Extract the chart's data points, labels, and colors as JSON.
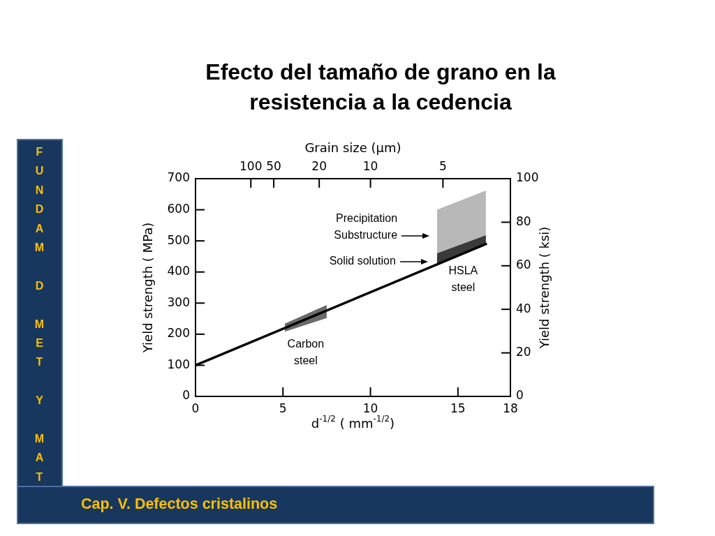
{
  "chart_data": {
    "type": "line",
    "title": "Efecto del tamaño de grano en la resistencia a la cedencia",
    "xlabel": "d$^{-1/2}$ ( mm$^{-1/2}$)",
    "ylabel": "Yield strength ( MPa)",
    "y2label": "Yield strength ( ksi)",
    "xlim": [
      0,
      18
    ],
    "xticks": [
      0,
      5,
      10,
      15,
      18
    ],
    "ylim": [
      0,
      700
    ],
    "yticks": [
      0,
      100,
      200,
      300,
      400,
      500,
      600,
      700
    ],
    "y2lim": [
      0,
      100
    ],
    "y2ticks": [
      0,
      20,
      40,
      60,
      80,
      100
    ],
    "series": [
      {
        "color": "#000000",
        "x": [
          0,
          16.6
        ],
        "values": [
          100,
          490
        ]
      },
      {
        "color": "#6a6a6a",
        "x": [
          5.1,
          7.5
        ],
        "values": [
          null,
          null
        ],
        "lower": [
          208,
          252
        ],
        "upper": [
          234,
          294
        ]
      },
      {
        "color": "#3a3a3a",
        "x": [
          13.8,
          16.6
        ],
        "values": [
          null,
          null
        ],
        "lower": [
          424,
          490
        ],
        "upper": [
          460,
          518
        ]
      },
      {
        "color": "#b8b8b8",
        "x": [
          13.8,
          16.6
        ],
        "values": [
          null,
          null
        ],
        "lower": [
          460,
          518
        ],
        "upper": [
          600,
          662
        ]
      }
    ],
    "annotations": [
      "Grain size (µm)",
      "100",
      "50",
      "20",
      "10",
      "5",
      "Carbon\nsteel",
      "HSLA\nsteel",
      "Precipitation\nSubstructure",
      "Solid solution",
      "FUNDAM D MET Y MAT",
      "Cap. V. Defectos cristalinos"
    ]
  }
}
